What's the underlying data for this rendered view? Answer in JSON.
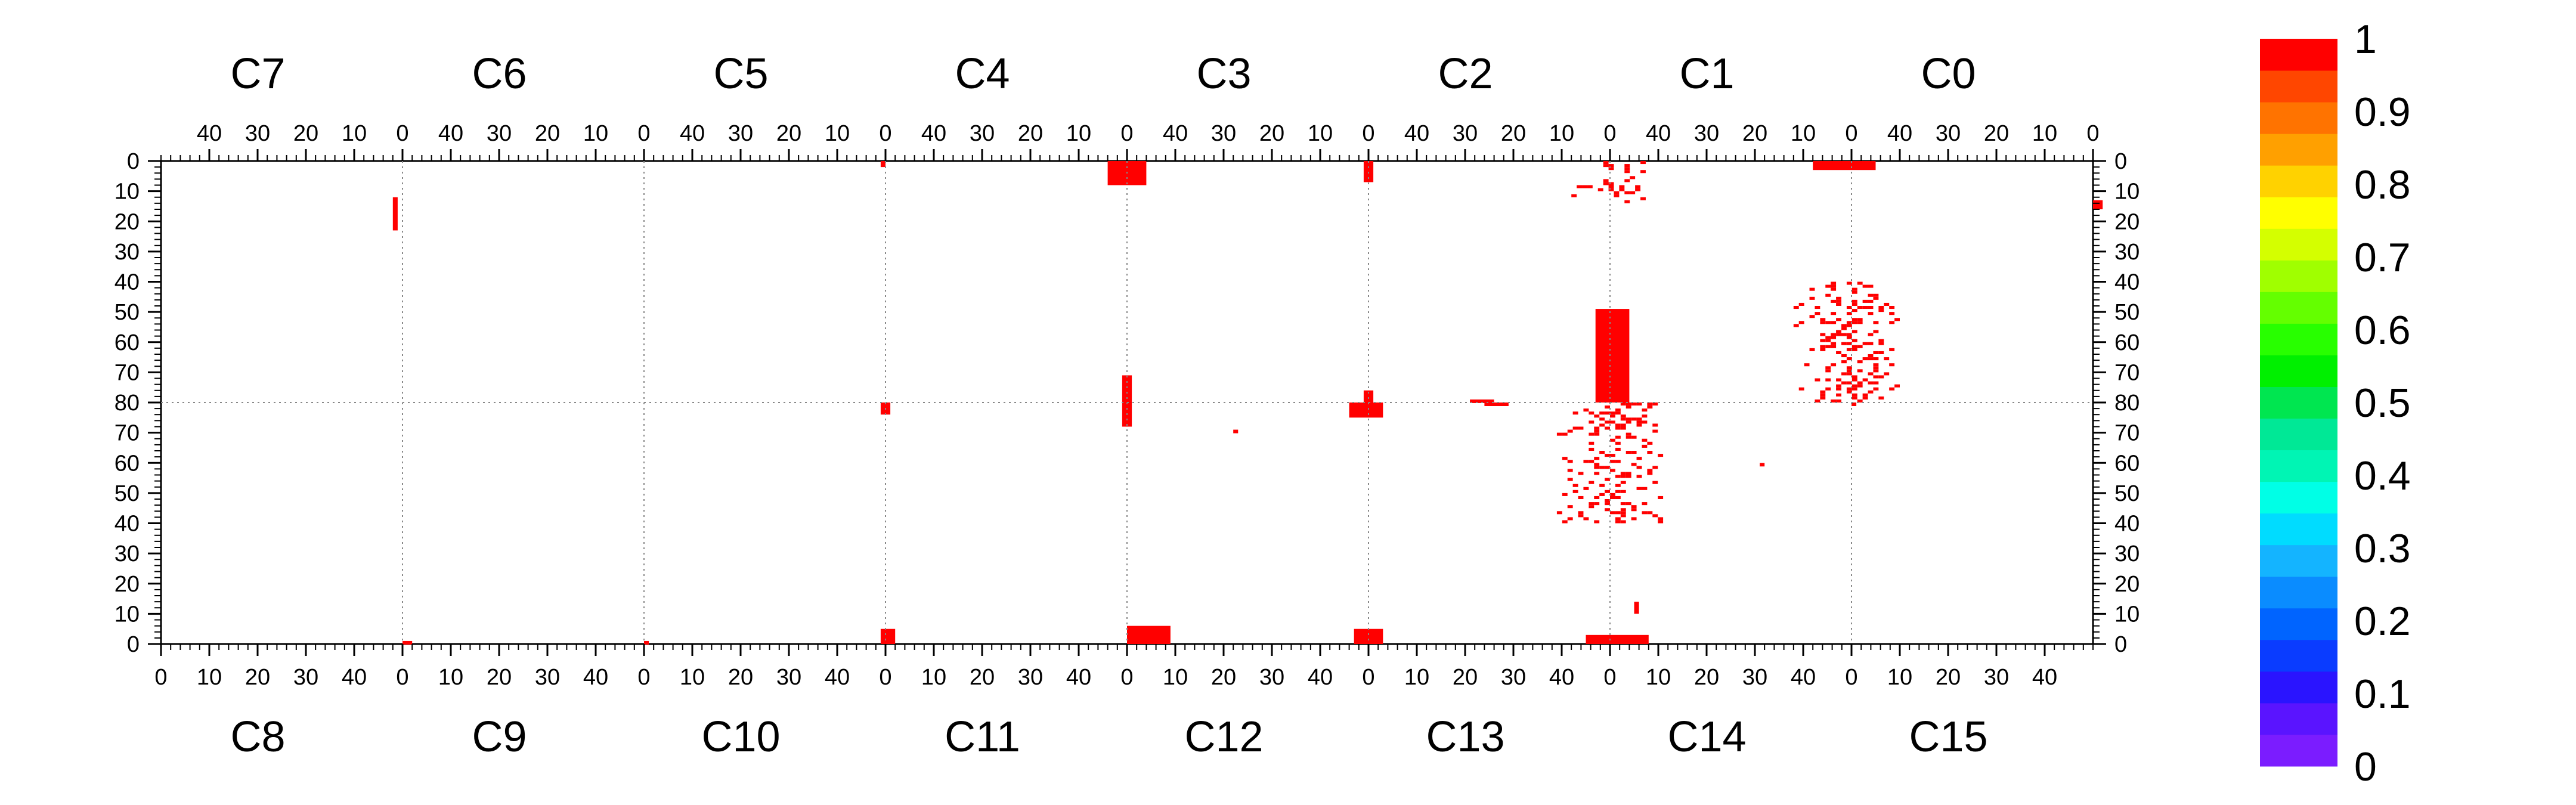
{
  "chart_data": {
    "type": "heatmap",
    "colormap": {
      "min": 0,
      "max": 1,
      "tick_labels": [
        "0",
        "0.1",
        "0.2",
        "0.3",
        "0.4",
        "0.5",
        "0.6",
        "0.7",
        "0.8",
        "0.9",
        "1"
      ],
      "colors": [
        "#7b1cff",
        "#5a14ff",
        "#2a14ff",
        "#0a3cff",
        "#0064ff",
        "#0a8cff",
        "#14b4ff",
        "#00dcff",
        "#00ffe6",
        "#00f5b4",
        "#00e896",
        "#00e650",
        "#00f000",
        "#28ff00",
        "#64ff00",
        "#a0ff00",
        "#d4ff00",
        "#ffff00",
        "#ffd200",
        "#ffa000",
        "#ff7300",
        "#ff4600",
        "#ff0000"
      ]
    },
    "top_channels": [
      "C7",
      "C6",
      "C5",
      "C4",
      "C3",
      "C2",
      "C1",
      "C0"
    ],
    "bottom_channels": [
      "C8",
      "C9",
      "C10",
      "C11",
      "C12",
      "C13",
      "C14",
      "C15"
    ],
    "top_tick_labels": [
      "40",
      "30",
      "20",
      "10",
      "0"
    ],
    "bottom_tick_labels": [
      "0",
      "10",
      "20",
      "30",
      "40"
    ],
    "y_tick_labels_upper": [
      "0",
      "10",
      "20",
      "30",
      "40",
      "50",
      "60",
      "70",
      "80"
    ],
    "y_tick_labels_lower": [
      "70",
      "60",
      "50",
      "40",
      "30",
      "20",
      "10",
      "0"
    ],
    "x_range_per_channel": [
      0,
      50
    ],
    "y_range_top_half": [
      0,
      80
    ],
    "y_range_bottom_half": [
      80,
      0
    ],
    "hit_value": 1,
    "hit_regions": [
      {
        "channel": "C7",
        "x": [
          1,
          2
        ],
        "y": [
          12,
          23
        ]
      },
      {
        "channel": "C5",
        "x": [
          0,
          1
        ],
        "y": [
          0,
          2
        ]
      },
      {
        "channel": "C4",
        "x": [
          -4,
          4
        ],
        "y": [
          0,
          8
        ]
      },
      {
        "channel": "C3",
        "x": [
          -1,
          1
        ],
        "y": [
          0,
          7
        ]
      },
      {
        "channel": "C2",
        "x": [
          -8,
          8
        ],
        "y": [
          0,
          14
        ]
      },
      {
        "channel": "C1",
        "x": [
          -5,
          8
        ],
        "y": [
          0,
          3
        ]
      },
      {
        "channel": "C0",
        "x": [
          -2,
          0
        ],
        "y": [
          13,
          16
        ]
      },
      {
        "channel": "C4",
        "x": [
          -1,
          1
        ],
        "y": [
          71,
          80
        ]
      },
      {
        "channel": "C3",
        "x": [
          -1,
          1
        ],
        "y": [
          76,
          80
        ]
      },
      {
        "channel": "C2",
        "x": [
          -4,
          3
        ],
        "y": [
          49,
          80
        ]
      },
      {
        "channel": "C2",
        "x": [
          24,
          29
        ],
        "y": [
          79,
          80
        ]
      },
      {
        "channel": "C1",
        "x": [
          -11,
          12
        ],
        "y": [
          40,
          80
        ]
      },
      {
        "channel": "C11",
        "x": [
          -1,
          1
        ],
        "y": [
          76,
          80
        ]
      },
      {
        "channel": "C12",
        "x": [
          -1,
          1
        ],
        "y": [
          72,
          80
        ]
      },
      {
        "channel": "C12",
        "x": [
          22,
          23
        ],
        "y": [
          70,
          71
        ]
      },
      {
        "channel": "C13",
        "x": [
          -4,
          3
        ],
        "y": [
          75,
          80
        ]
      },
      {
        "channel": "C13",
        "x": [
          24,
          29
        ],
        "y": [
          80,
          79
        ]
      },
      {
        "channel": "C14",
        "x": [
          -11,
          12
        ],
        "y": [
          40,
          80
        ]
      },
      {
        "channel": "C15",
        "x": [
          0,
          1
        ],
        "y": [
          79,
          80
        ]
      },
      {
        "channel": "C14",
        "x": [
          31,
          32
        ],
        "y": [
          59,
          60
        ]
      },
      {
        "channel": "C9",
        "x": [
          0,
          2
        ],
        "y": [
          0,
          1
        ]
      },
      {
        "channel": "C10",
        "x": [
          0,
          1
        ],
        "y": [
          0,
          1
        ]
      },
      {
        "channel": "C11",
        "x": [
          -1,
          2
        ],
        "y": [
          0,
          5
        ]
      },
      {
        "channel": "C12",
        "x": [
          0,
          9
        ],
        "y": [
          0,
          6
        ]
      },
      {
        "channel": "C13",
        "x": [
          -3,
          3
        ],
        "y": [
          0,
          5
        ]
      },
      {
        "channel": "C14",
        "x": [
          -5,
          8
        ],
        "y": [
          0,
          3
        ]
      },
      {
        "channel": "C14",
        "x": [
          5,
          6
        ],
        "y": [
          10,
          14
        ]
      }
    ]
  }
}
